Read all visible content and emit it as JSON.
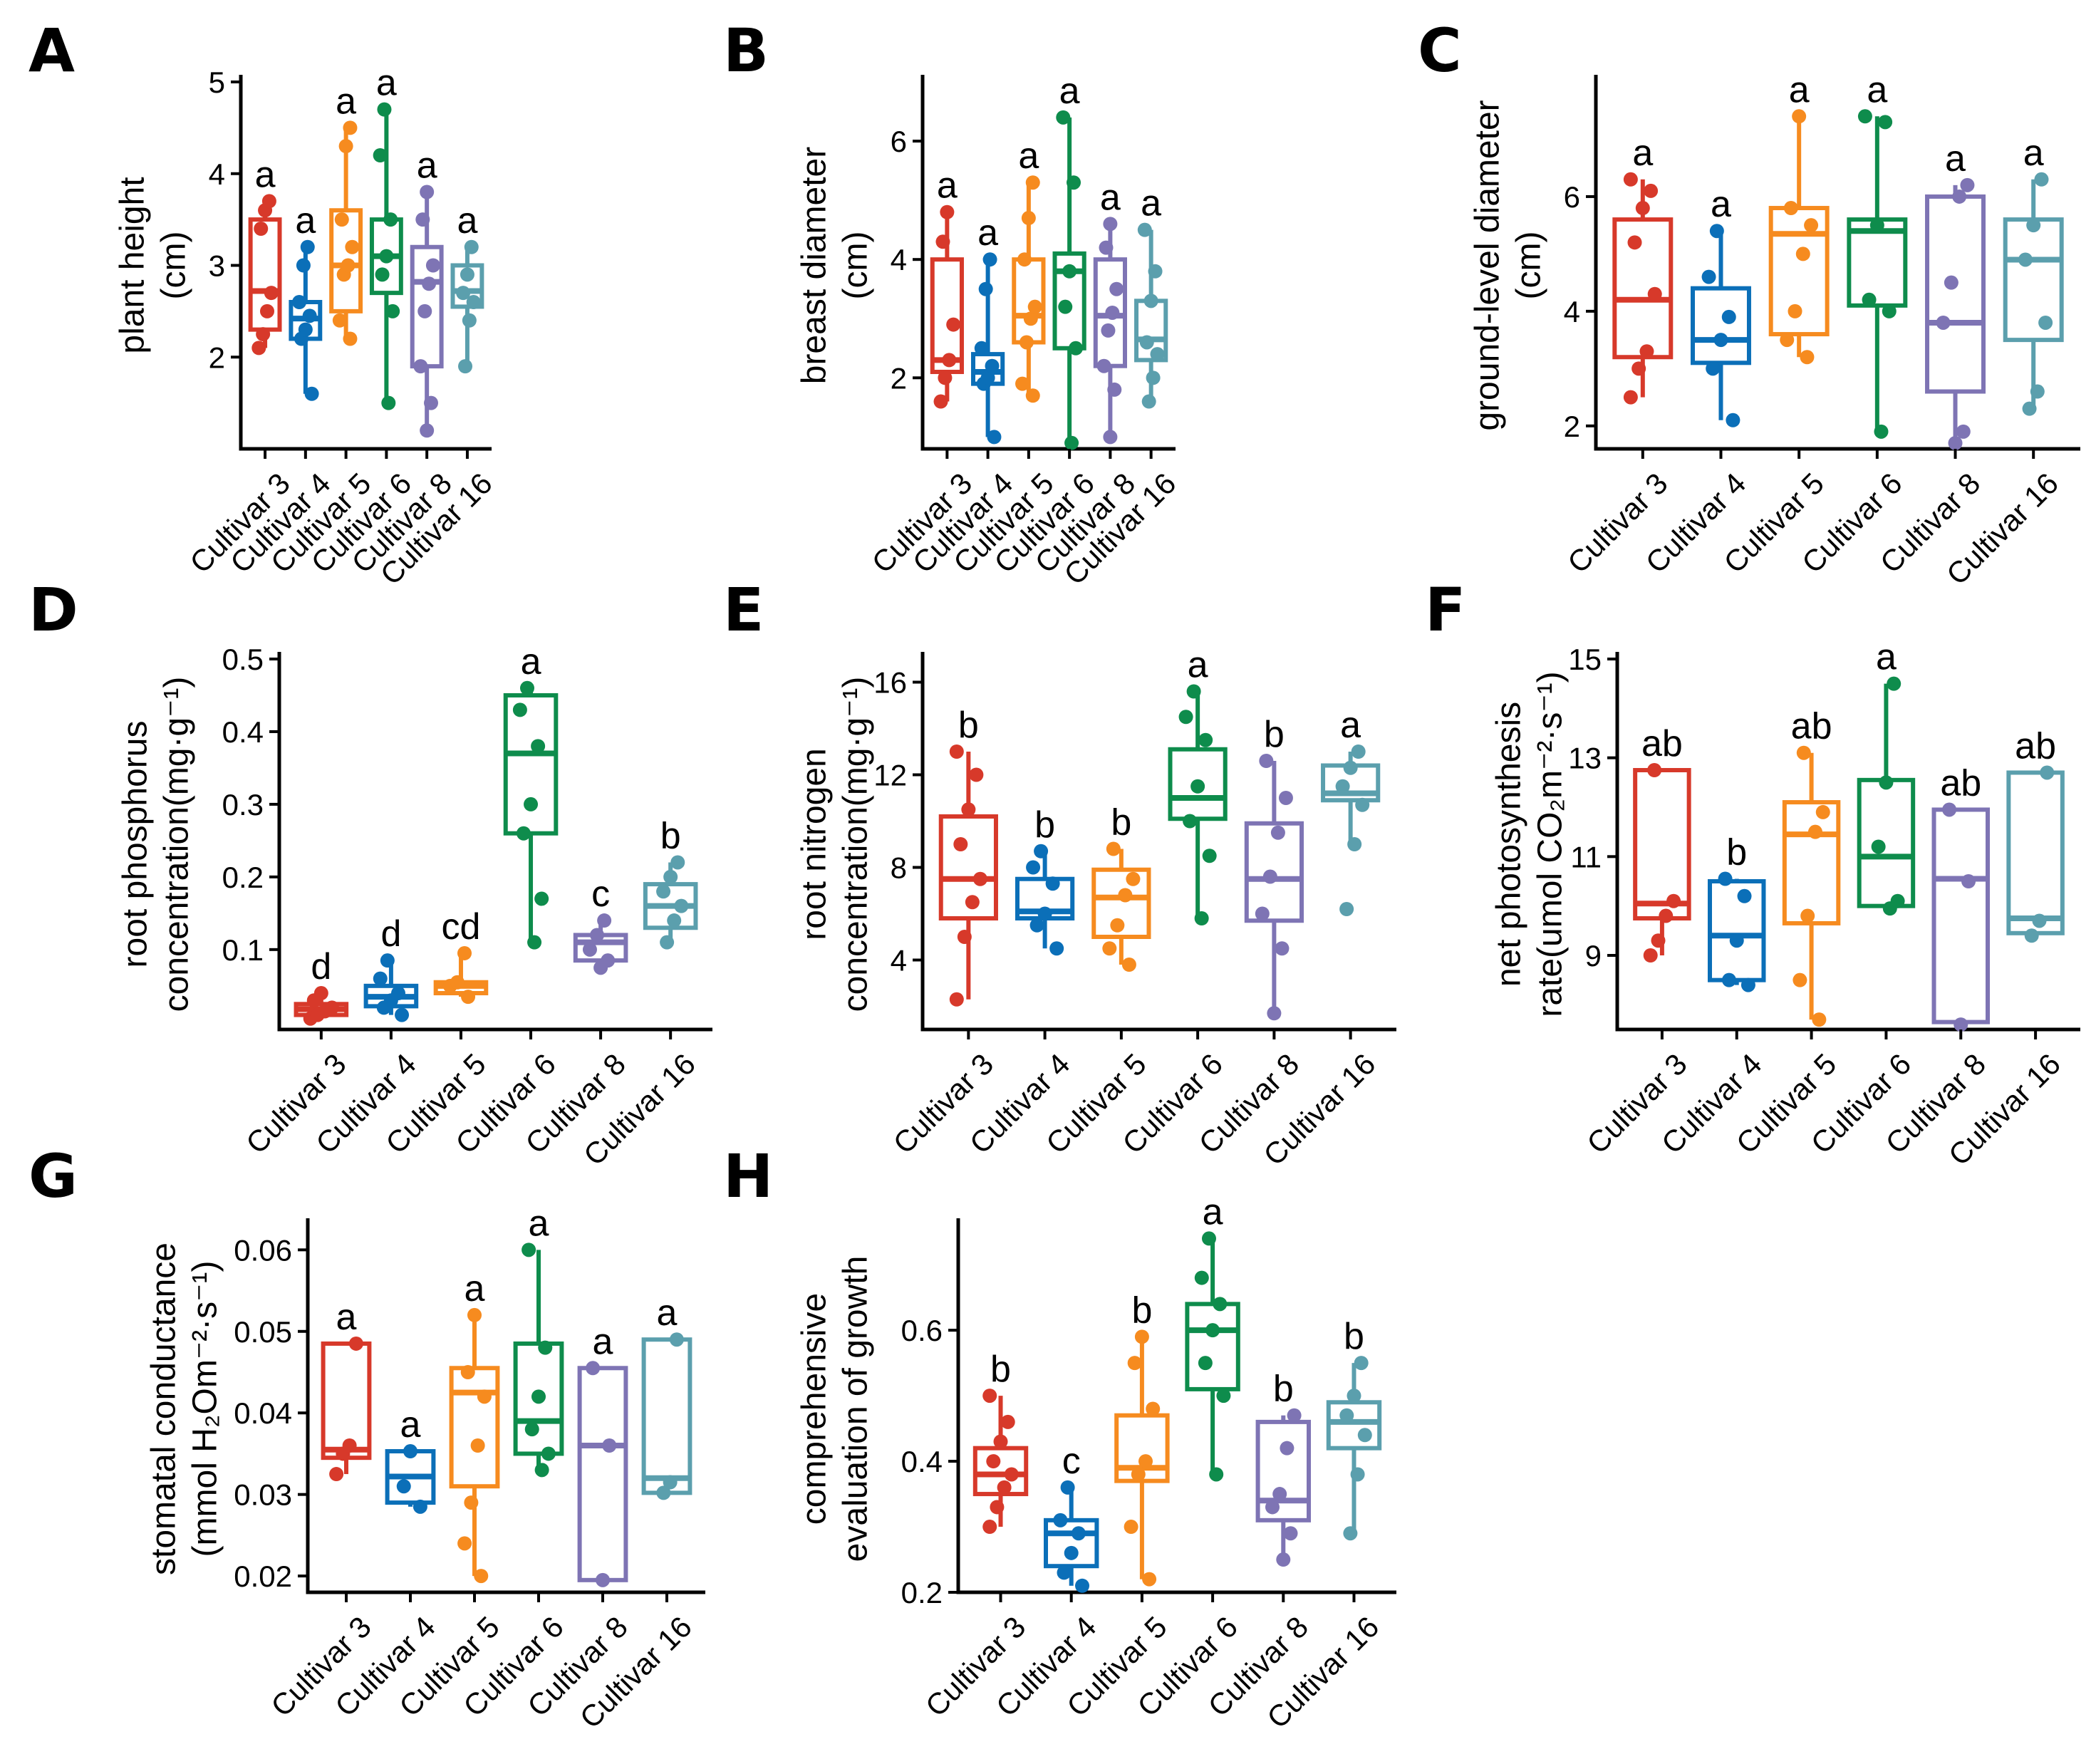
{
  "colors": {
    "Cultivar 3": "#d7392a",
    "Cultivar 4": "#0b6fb8",
    "Cultivar 5": "#f68b1f",
    "Cultivar 6": "#0e8c4c",
    "Cultivar 8": "#7e74b4",
    "Cultivar 16": "#5b9fad"
  },
  "chart_data": [
    {
      "panel": "A",
      "type": "box",
      "ylabel_lines": [
        "plant height",
        "(cm)"
      ],
      "ylim": [
        1.0,
        5.0
      ],
      "yticks": [
        "2",
        "3",
        "4",
        "5"
      ],
      "ytick_values": [
        2,
        3,
        4,
        5
      ],
      "categories": [
        "Cultivar 3",
        "Cultivar 4",
        "Cultivar 5",
        "Cultivar 6",
        "Cultivar 8",
        "Cultivar 16"
      ],
      "boxes": [
        {
          "q1": 2.3,
          "median": 2.72,
          "q3": 3.5,
          "min": 2.1,
          "max": 3.7,
          "points": [
            2.1,
            2.25,
            2.5,
            2.7,
            3.4,
            3.6,
            3.7
          ],
          "letter": "a"
        },
        {
          "q1": 2.2,
          "median": 2.42,
          "q3": 2.6,
          "min": 1.6,
          "max": 3.2,
          "points": [
            1.6,
            2.2,
            2.3,
            2.45,
            2.6,
            3.0,
            3.2
          ],
          "letter": "a"
        },
        {
          "q1": 2.5,
          "median": 3.0,
          "q3": 3.6,
          "min": 2.2,
          "max": 4.5,
          "points": [
            2.2,
            2.4,
            2.9,
            3.0,
            3.2,
            3.5,
            4.3,
            4.5
          ],
          "letter": "a"
        },
        {
          "q1": 2.7,
          "median": 3.1,
          "q3": 3.5,
          "min": 1.5,
          "max": 4.7,
          "points": [
            1.5,
            2.5,
            2.9,
            3.1,
            3.5,
            4.2,
            4.7
          ],
          "letter": "a"
        },
        {
          "q1": 1.9,
          "median": 2.82,
          "q3": 3.2,
          "min": 1.2,
          "max": 3.8,
          "points": [
            1.2,
            1.5,
            1.9,
            2.5,
            2.8,
            3.0,
            3.5,
            3.8
          ],
          "letter": "a"
        },
        {
          "q1": 2.55,
          "median": 2.72,
          "q3": 3.0,
          "min": 1.9,
          "max": 3.2,
          "points": [
            1.9,
            2.4,
            2.6,
            2.7,
            2.9,
            3.2
          ],
          "letter": "a"
        }
      ]
    },
    {
      "panel": "B",
      "type": "box",
      "ylabel_lines": [
        "breast diameter",
        "(cm)"
      ],
      "ylim": [
        0.8,
        7.0
      ],
      "yticks": [
        "2",
        "4",
        "6"
      ],
      "ytick_values": [
        2,
        4,
        6
      ],
      "categories": [
        "Cultivar 3",
        "Cultivar 4",
        "Cultivar 5",
        "Cultivar 6",
        "Cultivar 8",
        "Cultivar 16"
      ],
      "boxes": [
        {
          "q1": 2.1,
          "median": 2.3,
          "q3": 4.0,
          "min": 1.6,
          "max": 4.8,
          "points": [
            1.6,
            2.0,
            2.3,
            2.9,
            4.3,
            4.8
          ],
          "letter": "a"
        },
        {
          "q1": 1.9,
          "median": 2.1,
          "q3": 2.4,
          "min": 1.0,
          "max": 4.0,
          "points": [
            1.0,
            1.9,
            2.0,
            2.2,
            2.5,
            3.5,
            4.0
          ],
          "letter": "a"
        },
        {
          "q1": 2.6,
          "median": 3.05,
          "q3": 4.0,
          "min": 1.7,
          "max": 5.3,
          "points": [
            1.7,
            1.9,
            2.6,
            3.0,
            3.2,
            4.0,
            4.7,
            5.3
          ],
          "letter": "a"
        },
        {
          "q1": 2.5,
          "median": 3.8,
          "q3": 4.1,
          "min": 0.9,
          "max": 6.4,
          "points": [
            0.9,
            2.5,
            3.2,
            3.8,
            5.3,
            6.4
          ],
          "letter": "a"
        },
        {
          "q1": 2.2,
          "median": 3.05,
          "q3": 4.0,
          "min": 1.0,
          "max": 4.6,
          "points": [
            1.0,
            1.8,
            2.2,
            2.8,
            3.1,
            3.5,
            4.2,
            4.6
          ],
          "letter": "a"
        },
        {
          "q1": 2.3,
          "median": 2.65,
          "q3": 3.3,
          "min": 1.6,
          "max": 4.5,
          "points": [
            1.6,
            2.0,
            2.4,
            2.6,
            3.3,
            3.8,
            4.5
          ],
          "letter": "a"
        }
      ]
    },
    {
      "panel": "C",
      "type": "box",
      "ylabel_lines": [
        "ground-level diameter",
        "(cm)"
      ],
      "ylim": [
        1.6,
        8.0
      ],
      "yticks": [
        "2",
        "4",
        "6"
      ],
      "ytick_values": [
        2,
        4,
        6
      ],
      "categories": [
        "Cultivar 3",
        "Cultivar 4",
        "Cultivar 5",
        "Cultivar 6",
        "Cultivar 8",
        "Cultivar 16"
      ],
      "boxes": [
        {
          "q1": 3.2,
          "median": 4.2,
          "q3": 5.6,
          "min": 2.5,
          "max": 6.3,
          "points": [
            2.5,
            3.0,
            3.3,
            4.3,
            5.2,
            5.8,
            6.1,
            6.3
          ],
          "letter": "a"
        },
        {
          "q1": 3.1,
          "median": 3.5,
          "q3": 4.4,
          "min": 2.1,
          "max": 5.4,
          "points": [
            2.1,
            3.0,
            3.5,
            3.9,
            4.6,
            5.4
          ],
          "letter": "a"
        },
        {
          "q1": 3.6,
          "median": 5.35,
          "q3": 5.8,
          "min": 3.2,
          "max": 7.4,
          "points": [
            3.2,
            3.5,
            4.0,
            5.0,
            5.5,
            5.8,
            7.4
          ],
          "letter": "a"
        },
        {
          "q1": 4.1,
          "median": 5.4,
          "q3": 5.6,
          "min": 1.9,
          "max": 7.4,
          "points": [
            1.9,
            4.0,
            4.2,
            5.5,
            7.3,
            7.4
          ],
          "letter": "a"
        },
        {
          "q1": 2.6,
          "median": 3.8,
          "q3": 6.0,
          "min": 1.7,
          "max": 6.2,
          "points": [
            1.7,
            1.9,
            3.8,
            4.5,
            6.0,
            6.2
          ],
          "letter": "a"
        },
        {
          "q1": 3.5,
          "median": 4.9,
          "q3": 5.6,
          "min": 2.3,
          "max": 6.3,
          "points": [
            2.3,
            2.6,
            3.8,
            4.9,
            5.5,
            6.3
          ],
          "letter": "a"
        }
      ]
    },
    {
      "panel": "D",
      "type": "box",
      "ylabel_lines": [
        "root phosphorus",
        "concentration(mg·g⁻¹)"
      ],
      "ylim": [
        -0.01,
        0.5
      ],
      "yticks": [
        "0.1",
        "0.2",
        "0.3",
        "0.4",
        "0.5"
      ],
      "ytick_values": [
        0.1,
        0.2,
        0.3,
        0.4,
        0.5
      ],
      "categories": [
        "Cultivar 3",
        "Cultivar 4",
        "Cultivar 5",
        "Cultivar 6",
        "Cultivar 8",
        "Cultivar 16"
      ],
      "boxes": [
        {
          "q1": 0.01,
          "median": 0.018,
          "q3": 0.025,
          "min": 0.005,
          "max": 0.04,
          "points": [
            0.005,
            0.01,
            0.015,
            0.02,
            0.03,
            0.04
          ],
          "letter": "d"
        },
        {
          "q1": 0.022,
          "median": 0.035,
          "q3": 0.05,
          "min": 0.01,
          "max": 0.085,
          "points": [
            0.01,
            0.02,
            0.03,
            0.04,
            0.06,
            0.085
          ],
          "letter": "d"
        },
        {
          "q1": 0.04,
          "median": 0.05,
          "q3": 0.055,
          "min": 0.035,
          "max": 0.095,
          "points": [
            0.035,
            0.05,
            0.055,
            0.095
          ],
          "letter": "cd"
        },
        {
          "q1": 0.26,
          "median": 0.37,
          "q3": 0.45,
          "min": 0.11,
          "max": 0.46,
          "points": [
            0.11,
            0.17,
            0.26,
            0.3,
            0.38,
            0.43,
            0.46
          ],
          "letter": "a"
        },
        {
          "q1": 0.085,
          "median": 0.11,
          "q3": 0.12,
          "min": 0.075,
          "max": 0.14,
          "points": [
            0.075,
            0.085,
            0.1,
            0.12,
            0.14
          ],
          "letter": "c"
        },
        {
          "q1": 0.13,
          "median": 0.16,
          "q3": 0.19,
          "min": 0.11,
          "max": 0.22,
          "points": [
            0.11,
            0.14,
            0.16,
            0.18,
            0.2,
            0.22
          ],
          "letter": "b"
        }
      ]
    },
    {
      "panel": "E",
      "type": "box",
      "ylabel_lines": [
        "root nitrogen",
        "concentration(mg·g⁻¹)"
      ],
      "ylim": [
        1.0,
        17.0
      ],
      "yticks": [
        "4",
        "8",
        "12",
        "16"
      ],
      "ytick_values": [
        4,
        8,
        12,
        16
      ],
      "categories": [
        "Cultivar 3",
        "Cultivar 4",
        "Cultivar 5",
        "Cultivar 6",
        "Cultivar 8",
        "Cultivar 16"
      ],
      "boxes": [
        {
          "q1": 5.8,
          "median": 7.5,
          "q3": 10.2,
          "min": 2.3,
          "max": 13.0,
          "points": [
            2.3,
            5.0,
            6.5,
            7.5,
            9.0,
            10.5,
            12.0,
            13.0
          ],
          "letter": "b"
        },
        {
          "q1": 5.8,
          "median": 6.1,
          "q3": 7.5,
          "min": 4.5,
          "max": 8.7,
          "points": [
            4.5,
            5.5,
            6.0,
            7.3,
            8.0,
            8.7
          ],
          "letter": "b"
        },
        {
          "q1": 5.0,
          "median": 6.7,
          "q3": 7.9,
          "min": 3.8,
          "max": 8.8,
          "points": [
            3.8,
            4.5,
            5.5,
            6.8,
            7.5,
            8.8
          ],
          "letter": "b"
        },
        {
          "q1": 10.1,
          "median": 11.0,
          "q3": 13.1,
          "min": 5.8,
          "max": 15.6,
          "points": [
            5.8,
            8.5,
            10.0,
            11.5,
            13.5,
            14.5,
            15.6
          ],
          "letter": "a"
        },
        {
          "q1": 5.7,
          "median": 7.5,
          "q3": 9.9,
          "min": 1.7,
          "max": 12.6,
          "points": [
            1.7,
            4.5,
            6.0,
            7.6,
            9.5,
            11.0,
            12.6
          ],
          "letter": "b"
        },
        {
          "q1": 10.9,
          "median": 11.2,
          "q3": 12.4,
          "min": 9.0,
          "max": 13.0,
          "points": [
            6.2,
            9.0,
            10.7,
            11.5,
            12.3,
            13.0
          ],
          "letter": "a"
        }
      ]
    },
    {
      "panel": "F",
      "type": "box",
      "ylabel_lines": [
        "net photosynthesis",
        "rate(umol CO₂m⁻²·s⁻¹)"
      ],
      "ylim": [
        7.5,
        15.0
      ],
      "yticks": [
        "9",
        "11",
        "13",
        "15"
      ],
      "ytick_values": [
        9,
        11,
        13,
        15
      ],
      "categories": [
        "Cultivar 3",
        "Cultivar 4",
        "Cultivar 5",
        "Cultivar 6",
        "Cultivar 8",
        "Cultivar 16"
      ],
      "boxes": [
        {
          "q1": 9.75,
          "median": 10.05,
          "q3": 12.75,
          "min": 9.0,
          "max": 12.75,
          "points": [
            9.0,
            9.3,
            9.8,
            10.1,
            12.75
          ],
          "letter": "ab"
        },
        {
          "q1": 8.5,
          "median": 9.4,
          "q3": 10.5,
          "min": 8.4,
          "max": 10.55,
          "points": [
            8.4,
            8.5,
            9.3,
            10.2,
            10.55
          ],
          "letter": "b"
        },
        {
          "q1": 9.65,
          "median": 11.45,
          "q3": 12.1,
          "min": 7.7,
          "max": 13.1,
          "points": [
            7.7,
            8.5,
            9.8,
            11.5,
            11.9,
            13.1
          ],
          "letter": "ab"
        },
        {
          "q1": 10.0,
          "median": 11.0,
          "q3": 12.55,
          "min": 9.95,
          "max": 14.5,
          "points": [
            9.95,
            10.1,
            11.2,
            12.5,
            14.5
          ],
          "letter": "a"
        },
        {
          "q1": 7.65,
          "median": 10.55,
          "q3": 11.95,
          "min": 7.6,
          "max": 11.95,
          "points": [
            7.6,
            10.5,
            11.95
          ],
          "letter": "ab"
        },
        {
          "q1": 9.45,
          "median": 9.75,
          "q3": 12.7,
          "min": 9.4,
          "max": 12.7,
          "points": [
            9.4,
            9.7,
            12.7
          ],
          "letter": "ab"
        }
      ]
    },
    {
      "panel": "G",
      "type": "box",
      "ylabel_lines": [
        "stomatal conductance",
        "(mmol H₂Om⁻²·s⁻¹)"
      ],
      "ylim": [
        0.018,
        0.063
      ],
      "yticks": [
        "0.02",
        "0.03",
        "0.04",
        "0.05",
        "0.06"
      ],
      "ytick_values": [
        0.02,
        0.03,
        0.04,
        0.05,
        0.06
      ],
      "categories": [
        "Cultivar 3",
        "Cultivar 4",
        "Cultivar 5",
        "Cultivar 6",
        "Cultivar 8",
        "Cultivar 16"
      ],
      "boxes": [
        {
          "q1": 0.0345,
          "median": 0.0355,
          "q3": 0.0485,
          "min": 0.0325,
          "max": 0.0485,
          "points": [
            0.0325,
            0.035,
            0.036,
            0.0485
          ],
          "letter": "a"
        },
        {
          "q1": 0.029,
          "median": 0.0322,
          "q3": 0.0353,
          "min": 0.0285,
          "max": 0.0353,
          "points": [
            0.0285,
            0.031,
            0.0353
          ],
          "letter": "a"
        },
        {
          "q1": 0.031,
          "median": 0.0425,
          "q3": 0.0455,
          "min": 0.02,
          "max": 0.052,
          "points": [
            0.02,
            0.024,
            0.029,
            0.036,
            0.042,
            0.045,
            0.052
          ],
          "letter": "a"
        },
        {
          "q1": 0.035,
          "median": 0.039,
          "q3": 0.0485,
          "min": 0.033,
          "max": 0.06,
          "points": [
            0.033,
            0.035,
            0.038,
            0.042,
            0.048,
            0.06
          ],
          "letter": "a"
        },
        {
          "q1": 0.0195,
          "median": 0.036,
          "q3": 0.0455,
          "min": 0.0195,
          "max": 0.0455,
          "points": [
            0.0195,
            0.036,
            0.0455
          ],
          "letter": "a"
        },
        {
          "q1": 0.0302,
          "median": 0.032,
          "q3": 0.049,
          "min": 0.0302,
          "max": 0.049,
          "points": [
            0.0302,
            0.0315,
            0.049
          ],
          "letter": "a"
        }
      ]
    },
    {
      "panel": "H",
      "type": "box",
      "ylabel_lines": [
        "comprehensive",
        "evaluation of growth"
      ],
      "ylim": [
        0.2,
        0.76
      ],
      "yticks": [
        "0.2",
        "0.4",
        "0.6"
      ],
      "ytick_values": [
        0.2,
        0.4,
        0.6
      ],
      "categories": [
        "Cultivar 3",
        "Cultivar 4",
        "Cultivar 5",
        "Cultivar 6",
        "Cultivar 8",
        "Cultivar 16"
      ],
      "boxes": [
        {
          "q1": 0.35,
          "median": 0.38,
          "q3": 0.42,
          "min": 0.3,
          "max": 0.5,
          "points": [
            0.3,
            0.33,
            0.36,
            0.38,
            0.4,
            0.43,
            0.46,
            0.5
          ],
          "letter": "b"
        },
        {
          "q1": 0.24,
          "median": 0.29,
          "q3": 0.31,
          "min": 0.21,
          "max": 0.36,
          "points": [
            0.21,
            0.23,
            0.26,
            0.29,
            0.31,
            0.36
          ],
          "letter": "c"
        },
        {
          "q1": 0.37,
          "median": 0.39,
          "q3": 0.47,
          "min": 0.22,
          "max": 0.59,
          "points": [
            0.22,
            0.3,
            0.38,
            0.4,
            0.48,
            0.55,
            0.59
          ],
          "letter": "b"
        },
        {
          "q1": 0.51,
          "median": 0.6,
          "q3": 0.64,
          "min": 0.38,
          "max": 0.74,
          "points": [
            0.38,
            0.5,
            0.55,
            0.6,
            0.64,
            0.68,
            0.74
          ],
          "letter": "a"
        },
        {
          "q1": 0.31,
          "median": 0.34,
          "q3": 0.46,
          "min": 0.25,
          "max": 0.47,
          "points": [
            0.25,
            0.29,
            0.33,
            0.35,
            0.42,
            0.47
          ],
          "letter": "b"
        },
        {
          "q1": 0.42,
          "median": 0.46,
          "q3": 0.49,
          "min": 0.29,
          "max": 0.55,
          "points": [
            0.29,
            0.38,
            0.44,
            0.47,
            0.5,
            0.55
          ],
          "letter": "b"
        }
      ]
    }
  ]
}
